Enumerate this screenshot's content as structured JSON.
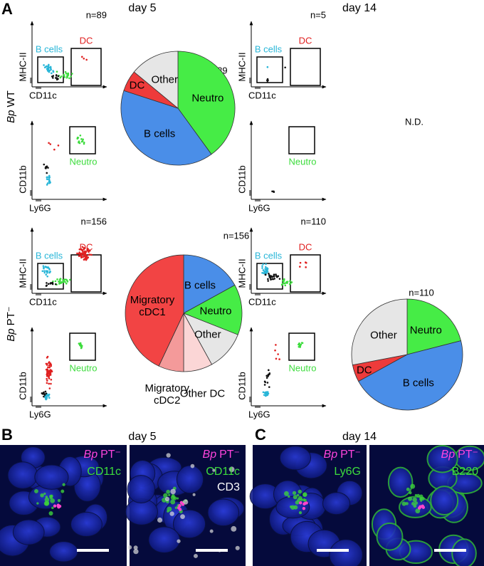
{
  "figure": {
    "panel_labels": [
      "A",
      "B",
      "C"
    ],
    "day_labels": [
      "day 5",
      "day 14"
    ],
    "rows": [
      {
        "strain": "Bp",
        "condition": "WT"
      },
      {
        "strain": "Bp",
        "condition": "PT⁻"
      }
    ],
    "flow_axes": {
      "top_y": "MHC-II",
      "top_x": "CD11c",
      "bottom_y": "CD11b",
      "bottom_x": "Ly6G"
    },
    "gates": {
      "b_cells": "B cells",
      "dc": "DC",
      "neutro": "Neutro"
    },
    "flow_counts": [
      "n=89",
      "n=5",
      "n=156",
      "n=110"
    ],
    "not_determined": "N.D.",
    "images": [
      {
        "strain": "Bp",
        "condition": "PT⁻",
        "stains": [
          "CD11c"
        ]
      },
      {
        "strain": "Bp",
        "condition": "PT⁻",
        "stains": [
          "CD11c",
          "CD3"
        ]
      },
      {
        "strain": "Bp",
        "condition": "PT⁻",
        "stains": [
          "Ly6G"
        ]
      },
      {
        "strain": "Bp",
        "condition": "PT⁻",
        "stains": [
          "B220"
        ]
      }
    ]
  },
  "chart_data": [
    {
      "type": "pie",
      "annotation": "n=89",
      "categories": [
        "Neutro",
        "B cells",
        "DC",
        "Other"
      ],
      "values": [
        40,
        40,
        6,
        14
      ],
      "colors": [
        "#46ec46",
        "#4a8ee8",
        "#ee3b3b",
        "#e6e6e6"
      ]
    },
    {
      "type": "pie",
      "annotation": "n=156",
      "categories": [
        "B cells",
        "Neutro",
        "Other",
        "Other DC",
        "Migratory cDC2",
        "Migratory cDC1"
      ],
      "values": [
        17,
        14,
        11,
        8,
        7,
        43
      ],
      "colors": [
        "#4a8ee8",
        "#46ec46",
        "#e6e6e6",
        "#fbd6d6",
        "#f49a9a",
        "#f24444"
      ]
    },
    {
      "type": "pie",
      "annotation": "n=110",
      "categories": [
        "Neutro",
        "B cells",
        "DC",
        "Other"
      ],
      "values": [
        21,
        46,
        5,
        28
      ],
      "colors": [
        "#46ec46",
        "#4a8ee8",
        "#ee3b3b",
        "#e6e6e6"
      ]
    }
  ]
}
